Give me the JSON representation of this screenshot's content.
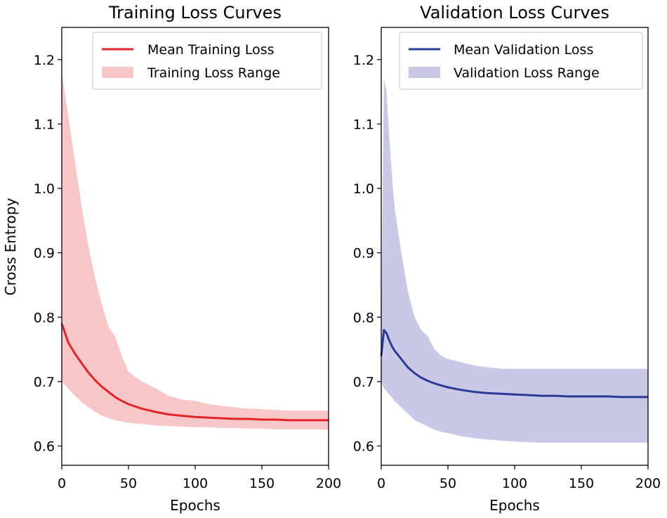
{
  "chart_data": [
    {
      "type": "line",
      "title": "Training Loss Curves",
      "xlabel": "Epochs",
      "ylabel": "Cross Entropy",
      "xlim": [
        0,
        200
      ],
      "ylim": [
        0.57,
        1.25
      ],
      "x_ticks": [
        0,
        50,
        100,
        150,
        200
      ],
      "y_ticks": [
        0.6,
        0.7,
        0.8,
        0.9,
        1.0,
        1.1,
        1.2
      ],
      "y_tick_labels": [
        "0.6",
        "0.7",
        "0.8",
        "0.9",
        "1.0",
        "1.1",
        "1.2"
      ],
      "color": "#e0242a",
      "fill_color": "#f8c6c6",
      "legend_position": "upper right",
      "series": [
        {
          "name": "Mean Training Loss",
          "kind": "line",
          "x": [
            0,
            5,
            10,
            15,
            20,
            25,
            30,
            35,
            40,
            45,
            50,
            60,
            70,
            80,
            90,
            100,
            110,
            120,
            130,
            140,
            150,
            160,
            170,
            180,
            190,
            200
          ],
          "values": [
            0.79,
            0.76,
            0.743,
            0.728,
            0.714,
            0.702,
            0.692,
            0.684,
            0.676,
            0.67,
            0.665,
            0.658,
            0.653,
            0.649,
            0.647,
            0.645,
            0.644,
            0.643,
            0.642,
            0.642,
            0.641,
            0.641,
            0.64,
            0.64,
            0.64,
            0.64
          ]
        },
        {
          "name": "Training Loss Range",
          "kind": "band",
          "x": [
            0,
            5,
            10,
            15,
            20,
            25,
            30,
            35,
            40,
            45,
            50,
            60,
            70,
            80,
            90,
            100,
            110,
            120,
            130,
            140,
            150,
            160,
            170,
            180,
            190,
            200
          ],
          "upper": [
            1.18,
            1.11,
            1.04,
            0.97,
            0.91,
            0.86,
            0.82,
            0.785,
            0.77,
            0.74,
            0.715,
            0.7,
            0.69,
            0.678,
            0.672,
            0.67,
            0.665,
            0.662,
            0.66,
            0.658,
            0.657,
            0.656,
            0.655,
            0.655,
            0.655,
            0.655
          ],
          "lower": [
            0.7,
            0.688,
            0.678,
            0.668,
            0.66,
            0.653,
            0.647,
            0.643,
            0.64,
            0.638,
            0.636,
            0.634,
            0.632,
            0.631,
            0.63,
            0.629,
            0.629,
            0.628,
            0.628,
            0.627,
            0.627,
            0.626,
            0.626,
            0.626,
            0.626,
            0.625
          ]
        }
      ]
    },
    {
      "type": "line",
      "title": "Validation Loss Curves",
      "xlabel": "Epochs",
      "ylabel": "",
      "xlim": [
        0,
        200
      ],
      "ylim": [
        0.57,
        1.25
      ],
      "x_ticks": [
        0,
        50,
        100,
        150,
        200
      ],
      "y_ticks": [
        0.6,
        0.7,
        0.8,
        0.9,
        1.0,
        1.1,
        1.2
      ],
      "y_tick_labels": [
        "0.6",
        "0.7",
        "0.8",
        "0.9",
        "1.0",
        "1.1",
        "1.2"
      ],
      "color": "#2b3a9a",
      "fill_color": "#c9c8e6",
      "legend_position": "upper right",
      "series": [
        {
          "name": "Mean Validation Loss",
          "kind": "line",
          "x": [
            0,
            2,
            4,
            6,
            8,
            10,
            15,
            20,
            25,
            30,
            35,
            40,
            45,
            50,
            60,
            70,
            80,
            90,
            100,
            110,
            120,
            130,
            140,
            150,
            160,
            170,
            180,
            190,
            200
          ],
          "values": [
            0.74,
            0.78,
            0.775,
            0.764,
            0.755,
            0.748,
            0.735,
            0.722,
            0.713,
            0.706,
            0.701,
            0.697,
            0.694,
            0.691,
            0.687,
            0.684,
            0.682,
            0.681,
            0.68,
            0.679,
            0.678,
            0.678,
            0.677,
            0.677,
            0.677,
            0.677,
            0.676,
            0.676,
            0.676
          ]
        },
        {
          "name": "Validation Loss Range",
          "kind": "band",
          "x": [
            0,
            2,
            4,
            6,
            8,
            10,
            15,
            20,
            25,
            30,
            35,
            40,
            45,
            50,
            60,
            70,
            80,
            90,
            100,
            110,
            120,
            130,
            140,
            150,
            160,
            170,
            180,
            190,
            200
          ],
          "upper": [
            0.78,
            1.17,
            1.15,
            1.08,
            1.02,
            0.97,
            0.9,
            0.84,
            0.8,
            0.78,
            0.77,
            0.75,
            0.74,
            0.735,
            0.73,
            0.725,
            0.722,
            0.72,
            0.72,
            0.72,
            0.72,
            0.72,
            0.72,
            0.72,
            0.72,
            0.72,
            0.72,
            0.72,
            0.72
          ],
          "lower": [
            0.7,
            0.69,
            0.685,
            0.68,
            0.675,
            0.67,
            0.66,
            0.65,
            0.64,
            0.635,
            0.63,
            0.625,
            0.622,
            0.62,
            0.615,
            0.612,
            0.61,
            0.608,
            0.607,
            0.606,
            0.605,
            0.605,
            0.605,
            0.605,
            0.605,
            0.605,
            0.605,
            0.605,
            0.605
          ]
        }
      ]
    }
  ]
}
